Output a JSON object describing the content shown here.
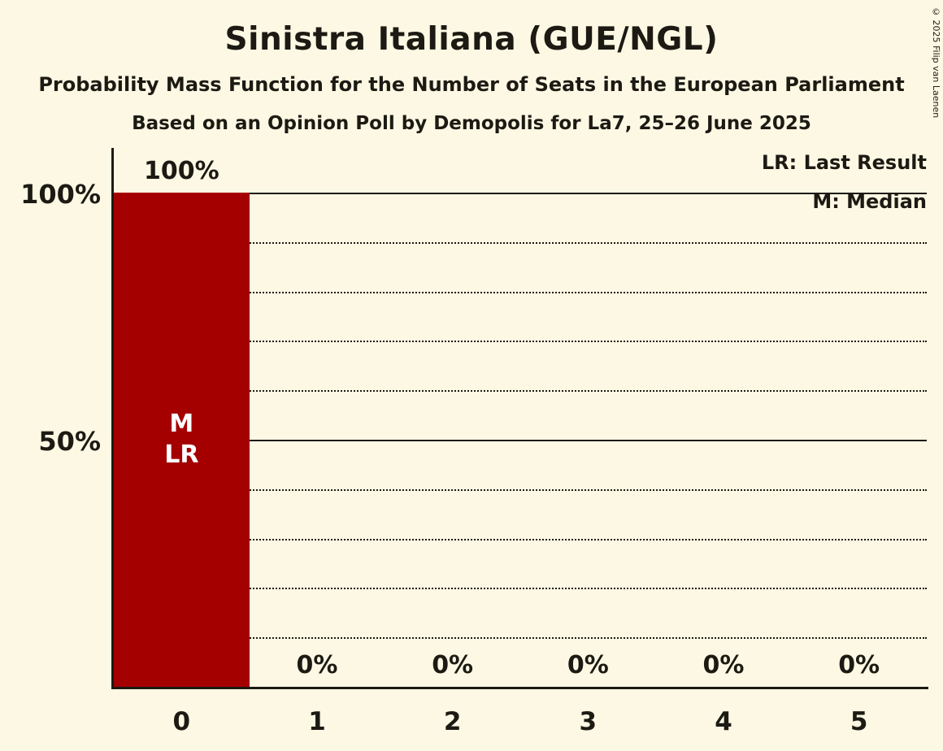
{
  "title": "Sinistra Italiana (GUE/NGL)",
  "subtitle": "Probability Mass Function for the Number of Seats in the European Parliament",
  "poll_info": "Based on an Opinion Poll by Demopolis for La7, 25–26 June 2025",
  "copyright": "© 2025 Filip van Laenen",
  "legend": {
    "last_result": "LR: Last Result",
    "median": "M: Median"
  },
  "y_axis": {
    "label_100": "100%",
    "label_50": "50%"
  },
  "colors": {
    "background": "#fcf8e3",
    "bar": "#a40000",
    "text": "#1c1a13",
    "bar_label": "#ffffff"
  },
  "chart_data": {
    "type": "bar",
    "title": "Sinistra Italiana (GUE/NGL)",
    "categories": [
      "0",
      "1",
      "2",
      "3",
      "4",
      "5"
    ],
    "values": [
      100,
      0,
      0,
      0,
      0,
      0
    ],
    "value_labels": [
      "100%",
      "0%",
      "0%",
      "0%",
      "0%",
      "0%"
    ],
    "ylim": [
      0,
      100
    ],
    "y_gridline_step_percent": 10,
    "solid_gridlines_at_percent": [
      50,
      100
    ],
    "legend_position": "top-right",
    "median_seats": 0,
    "last_result_seats": 0,
    "bar_annotations": [
      {
        "category": "0",
        "lines": [
          "M",
          "LR"
        ]
      }
    ]
  }
}
